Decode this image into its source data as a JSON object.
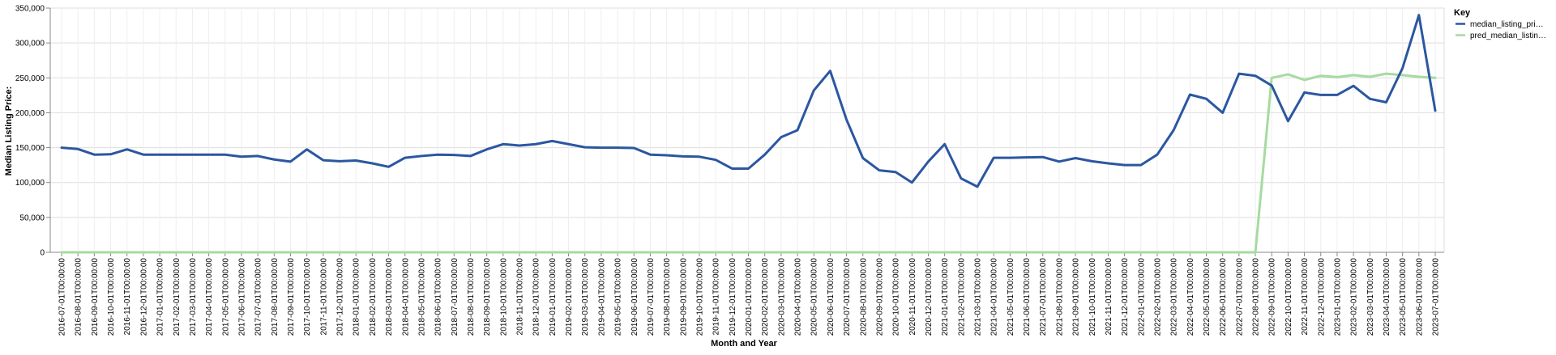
{
  "chart_data": {
    "type": "line",
    "xlabel": "Month and Year",
    "ylabel": "Median Listing Price:",
    "ylim": [
      0,
      350000
    ],
    "y_ticks": [
      "0",
      "50,000",
      "100,000",
      "150,000",
      "200,000",
      "250,000",
      "300,000",
      "350,000"
    ],
    "grid": true,
    "legend": {
      "title": "Key",
      "placement": "top-right"
    },
    "x": [
      "2016-07-01T00:00:00",
      "2016-08-01T00:00:00",
      "2016-09-01T00:00:00",
      "2016-10-01T00:00:00",
      "2016-11-01T00:00:00",
      "2016-12-01T00:00:00",
      "2017-01-01T00:00:00",
      "2017-02-01T00:00:00",
      "2017-03-01T00:00:00",
      "2017-04-01T00:00:00",
      "2017-05-01T00:00:00",
      "2017-06-01T00:00:00",
      "2017-07-01T00:00:00",
      "2017-08-01T00:00:00",
      "2017-09-01T00:00:00",
      "2017-10-01T00:00:00",
      "2017-11-01T00:00:00",
      "2017-12-01T00:00:00",
      "2018-01-01T00:00:00",
      "2018-02-01T00:00:00",
      "2018-03-01T00:00:00",
      "2018-04-01T00:00:00",
      "2018-05-01T00:00:00",
      "2018-06-01T00:00:00",
      "2018-07-01T00:00:00",
      "2018-08-01T00:00:00",
      "2018-09-01T00:00:00",
      "2018-10-01T00:00:00",
      "2018-11-01T00:00:00",
      "2018-12-01T00:00:00",
      "2019-01-01T00:00:00",
      "2019-02-01T00:00:00",
      "2019-03-01T00:00:00",
      "2019-04-01T00:00:00",
      "2019-05-01T00:00:00",
      "2019-06-01T00:00:00",
      "2019-07-01T00:00:00",
      "2019-08-01T00:00:00",
      "2019-09-01T00:00:00",
      "2019-10-01T00:00:00",
      "2019-11-01T00:00:00",
      "2019-12-01T00:00:00",
      "2020-01-01T00:00:00",
      "2020-02-01T00:00:00",
      "2020-03-01T00:00:00",
      "2020-04-01T00:00:00",
      "2020-05-01T00:00:00",
      "2020-06-01T00:00:00",
      "2020-07-01T00:00:00",
      "2020-08-01T00:00:00",
      "2020-09-01T00:00:00",
      "2020-10-01T00:00:00",
      "2020-11-01T00:00:00",
      "2020-12-01T00:00:00",
      "2021-01-01T00:00:00",
      "2021-02-01T00:00:00",
      "2021-03-01T00:00:00",
      "2021-04-01T00:00:00",
      "2021-05-01T00:00:00",
      "2021-06-01T00:00:00",
      "2021-07-01T00:00:00",
      "2021-08-01T00:00:00",
      "2021-09-01T00:00:00",
      "2021-10-01T00:00:00",
      "2021-11-01T00:00:00",
      "2021-12-01T00:00:00",
      "2022-01-01T00:00:00",
      "2022-02-01T00:00:00",
      "2022-03-01T00:00:00",
      "2022-04-01T00:00:00",
      "2022-05-01T00:00:00",
      "2022-06-01T00:00:00",
      "2022-07-01T00:00:00",
      "2022-08-01T00:00:00",
      "2022-09-01T00:00:00",
      "2022-10-01T00:00:00",
      "2022-11-01T00:00:00",
      "2022-12-01T00:00:00",
      "2023-01-01T00:00:00",
      "2023-02-01T00:00:00",
      "2023-03-01T00:00:00",
      "2023-04-01T00:00:00",
      "2023-05-01T00:00:00",
      "2023-06-01T00:00:00",
      "2023-07-01T00:00:00"
    ],
    "series": [
      {
        "name": "median_listing_pri…",
        "color": "#2b57a0",
        "values": [
          150000,
          148000,
          140000,
          140500,
          147500,
          140000,
          140000,
          140000,
          140000,
          140000,
          140000,
          137000,
          138000,
          133000,
          130000,
          147500,
          132000,
          130500,
          131500,
          127500,
          122500,
          135500,
          138000,
          140000,
          139500,
          138000,
          147500,
          155000,
          153000,
          155000,
          159500,
          155000,
          150500,
          150000,
          150000,
          149500,
          140000,
          139000,
          137500,
          137000,
          132500,
          120000,
          120000,
          140000,
          165000,
          175000,
          232000,
          260000,
          190000,
          135000,
          117500,
          115000,
          100000,
          130000,
          155000,
          106000,
          94000,
          135500,
          135500,
          136000,
          136500,
          130000,
          135000,
          130500,
          127500,
          125000,
          125000,
          140000,
          175000,
          226000,
          220000,
          200000,
          256000,
          253000,
          239000,
          188000,
          229000,
          225500,
          225500,
          238500,
          220000,
          215000,
          264000,
          340000,
          203000
        ]
      },
      {
        "name": "pred_median_listin…",
        "color": "#a6dba0",
        "values": [
          0,
          0,
          0,
          0,
          0,
          0,
          0,
          0,
          0,
          0,
          0,
          0,
          0,
          0,
          0,
          0,
          0,
          0,
          0,
          0,
          0,
          0,
          0,
          0,
          0,
          0,
          0,
          0,
          0,
          0,
          0,
          0,
          0,
          0,
          0,
          0,
          0,
          0,
          0,
          0,
          0,
          0,
          0,
          0,
          0,
          0,
          0,
          0,
          0,
          0,
          0,
          0,
          0,
          0,
          0,
          0,
          0,
          0,
          0,
          0,
          0,
          0,
          0,
          0,
          0,
          0,
          0,
          0,
          0,
          0,
          0,
          0,
          0,
          0,
          250000,
          255000,
          247000,
          253000,
          251000,
          254000,
          251500,
          256000,
          254000,
          251500,
          250000
        ]
      }
    ]
  }
}
